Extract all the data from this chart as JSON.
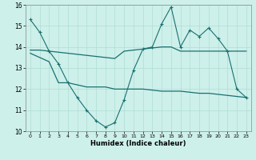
{
  "xlabel": "Humidex (Indice chaleur)",
  "xlim": [
    -0.5,
    23.5
  ],
  "ylim": [
    10,
    16
  ],
  "yticks": [
    10,
    11,
    12,
    13,
    14,
    15,
    16
  ],
  "xticks": [
    0,
    1,
    2,
    3,
    4,
    5,
    6,
    7,
    8,
    9,
    10,
    11,
    12,
    13,
    14,
    15,
    16,
    17,
    18,
    19,
    20,
    21,
    22,
    23
  ],
  "bg_color": "#cdf0ea",
  "grid_color": "#b0ddd4",
  "line_color": "#1a7070",
  "line1_x": [
    0,
    1,
    2,
    3,
    4,
    5,
    6,
    7,
    8,
    9,
    10,
    11,
    12,
    13,
    14,
    15,
    16,
    17,
    18,
    19,
    20,
    21,
    22,
    23
  ],
  "line1_y": [
    15.3,
    14.7,
    13.8,
    13.2,
    12.3,
    11.6,
    11.0,
    10.5,
    10.2,
    10.4,
    11.5,
    12.9,
    13.9,
    14.0,
    15.1,
    15.9,
    14.0,
    14.8,
    14.5,
    14.9,
    14.4,
    13.8,
    12.0,
    11.6
  ],
  "line2_x": [
    0,
    1,
    2,
    3,
    4,
    5,
    6,
    7,
    8,
    9,
    10,
    11,
    12,
    13,
    14,
    15,
    16,
    17,
    18,
    19,
    20,
    21,
    22,
    23
  ],
  "line2_y": [
    13.85,
    13.85,
    13.8,
    13.75,
    13.7,
    13.65,
    13.6,
    13.55,
    13.5,
    13.45,
    13.8,
    13.85,
    13.9,
    13.95,
    14.0,
    14.0,
    13.8,
    13.8,
    13.8,
    13.8,
    13.8,
    13.8,
    13.8,
    13.8
  ],
  "line3_x": [
    0,
    1,
    2,
    3,
    4,
    5,
    6,
    7,
    8,
    9,
    10,
    11,
    12,
    13,
    14,
    15,
    16,
    17,
    18,
    19,
    20,
    21,
    22,
    23
  ],
  "line3_y": [
    13.7,
    13.5,
    13.3,
    12.3,
    12.3,
    12.2,
    12.1,
    12.1,
    12.1,
    12.0,
    12.0,
    12.0,
    12.0,
    11.95,
    11.9,
    11.9,
    11.9,
    11.85,
    11.8,
    11.8,
    11.75,
    11.7,
    11.65,
    11.6
  ]
}
